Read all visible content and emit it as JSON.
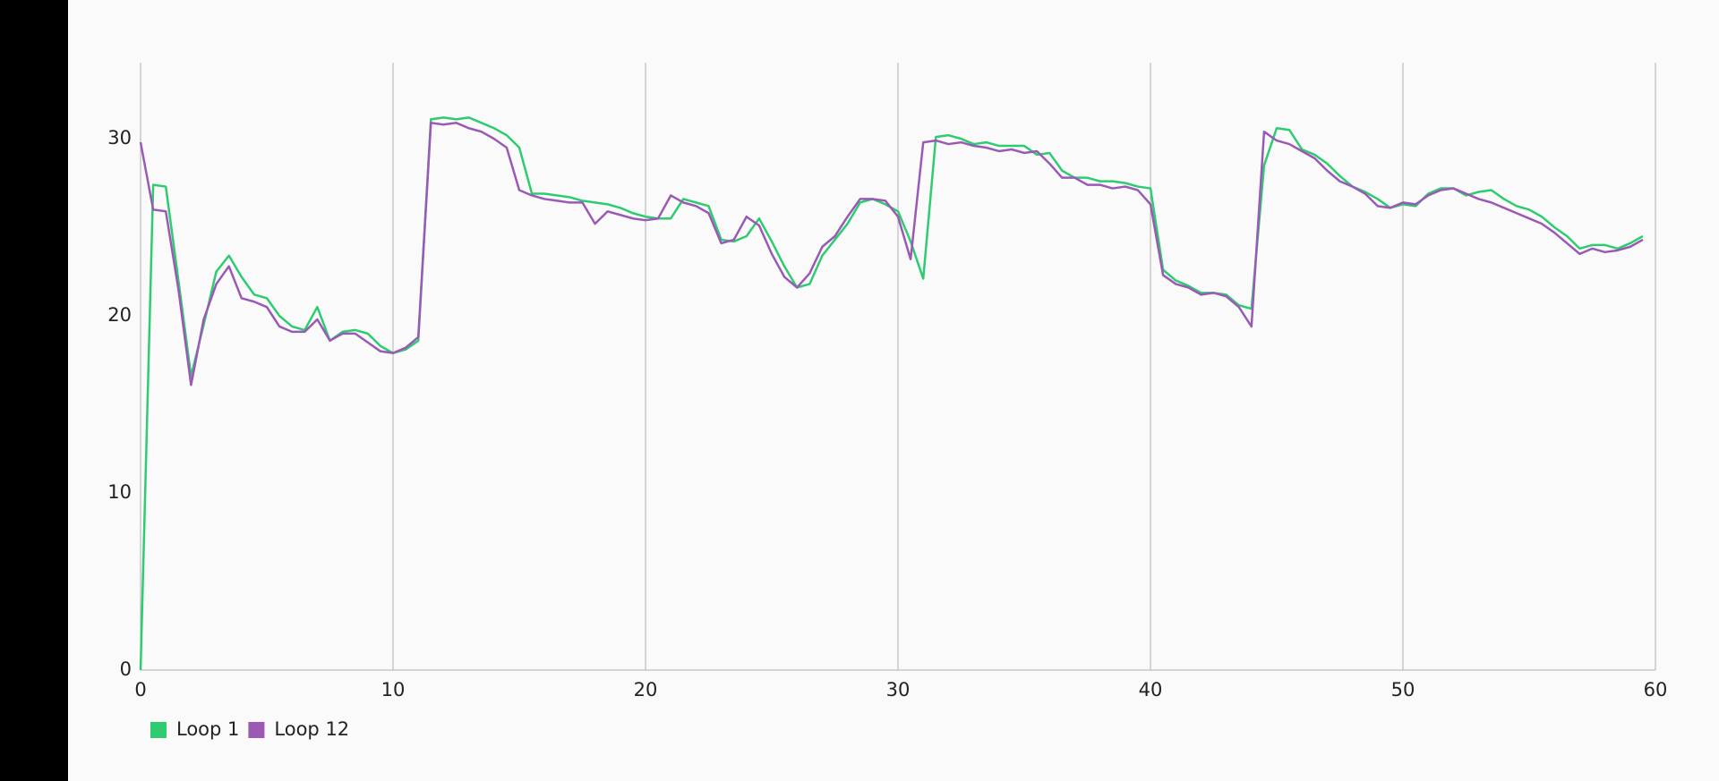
{
  "chart_data": {
    "type": "line",
    "x": [
      0,
      0.5,
      1,
      1.5,
      2,
      2.5,
      3,
      3.5,
      4,
      4.5,
      5,
      5.5,
      6,
      6.5,
      7,
      7.5,
      8,
      8.5,
      9,
      9.5,
      10,
      10.5,
      11,
      11.5,
      12,
      12.5,
      13,
      13.5,
      14,
      14.5,
      15,
      15.5,
      16,
      16.5,
      17,
      17.5,
      18,
      18.5,
      19,
      19.5,
      20,
      20.5,
      21,
      21.5,
      22,
      22.5,
      23,
      23.5,
      24,
      24.5,
      25,
      25.5,
      26,
      26.5,
      27,
      27.5,
      28,
      28.5,
      29,
      29.5,
      30,
      30.5,
      31,
      31.5,
      32,
      32.5,
      33,
      33.5,
      34,
      34.5,
      35,
      35.5,
      36,
      36.5,
      37,
      37.5,
      38,
      38.5,
      39,
      39.5,
      40,
      40.5,
      41,
      41.5,
      42,
      42.5,
      43,
      43.5,
      44,
      44.5,
      45,
      45.5,
      46,
      46.5,
      47,
      47.5,
      48,
      48.5,
      49,
      49.5,
      50,
      50.5,
      51,
      51.5,
      52,
      52.5,
      53,
      53.5,
      54,
      54.5,
      55,
      55.5,
      56,
      56.5,
      57,
      57.5,
      58,
      58.5,
      59,
      59.5
    ],
    "series": [
      {
        "name": "Loop 1",
        "color": "#2ecc71",
        "values": [
          0,
          27.4,
          27.3,
          22,
          16.6,
          19.5,
          22.5,
          23.4,
          22.2,
          21.2,
          21,
          20,
          19.4,
          19.2,
          20.5,
          18.6,
          19.1,
          19.2,
          19,
          18.3,
          17.9,
          18.1,
          18.6,
          31.1,
          31.2,
          31.1,
          31.2,
          30.9,
          30.6,
          30.2,
          29.5,
          26.9,
          26.9,
          26.8,
          26.7,
          26.5,
          26.4,
          26.3,
          26.1,
          25.8,
          25.6,
          25.5,
          25.5,
          26.6,
          26.4,
          26.2,
          24.3,
          24.2,
          24.5,
          25.5,
          24.2,
          22.8,
          21.6,
          21.8,
          23.4,
          24.3,
          25.2,
          26.4,
          26.6,
          26.3,
          25.9,
          24.2,
          22.1,
          30.1,
          30.2,
          30,
          29.7,
          29.8,
          29.6,
          29.6,
          29.6,
          29.1,
          29.2,
          28.2,
          27.8,
          27.8,
          27.6,
          27.6,
          27.5,
          27.3,
          27.2,
          22.6,
          22,
          21.7,
          21.3,
          21.3,
          21.2,
          20.6,
          20.4,
          28.5,
          30.6,
          30.5,
          29.4,
          29.1,
          28.6,
          27.9,
          27.3,
          27,
          26.6,
          26.1,
          26.3,
          26.2,
          26.9,
          27.2,
          27.2,
          26.8,
          27,
          27.1,
          26.6,
          26.2,
          26,
          25.6,
          25,
          24.5,
          23.8,
          24,
          24,
          23.8,
          24.1,
          24.5
        ]
      },
      {
        "name": "Loop 12",
        "color": "#9b59b6",
        "values": [
          29.8,
          26,
          25.9,
          21.5,
          16.1,
          19.8,
          21.8,
          22.8,
          21,
          20.8,
          20.5,
          19.4,
          19.1,
          19.1,
          19.8,
          18.6,
          19,
          19,
          18.5,
          18,
          17.9,
          18.2,
          18.8,
          30.9,
          30.8,
          30.9,
          30.6,
          30.4,
          30,
          29.5,
          27.1,
          26.8,
          26.6,
          26.5,
          26.4,
          26.4,
          25.2,
          25.9,
          25.7,
          25.5,
          25.4,
          25.5,
          26.8,
          26.4,
          26.2,
          25.8,
          24.1,
          24.3,
          25.6,
          25.1,
          23.5,
          22.2,
          21.6,
          22.4,
          23.9,
          24.5,
          25.6,
          26.6,
          26.6,
          26.5,
          25.6,
          23.2,
          29.8,
          29.9,
          29.7,
          29.8,
          29.6,
          29.5,
          29.3,
          29.4,
          29.2,
          29.3,
          28.6,
          27.8,
          27.8,
          27.4,
          27.4,
          27.2,
          27.3,
          27.1,
          26.3,
          22.3,
          21.8,
          21.6,
          21.2,
          21.3,
          21.1,
          20.5,
          19.4,
          30.4,
          29.9,
          29.7,
          29.3,
          28.9,
          28.2,
          27.6,
          27.3,
          26.9,
          26.2,
          26.1,
          26.4,
          26.3,
          26.8,
          27.1,
          27.2,
          26.9,
          26.6,
          26.4,
          26.1,
          25.8,
          25.5,
          25.2,
          24.7,
          24.1,
          23.5,
          23.8,
          23.6,
          23.7,
          23.9,
          24.3
        ]
      }
    ],
    "xlim": [
      0,
      60
    ],
    "xticks": [
      0,
      10,
      20,
      30,
      40,
      50,
      60
    ],
    "ylim": [
      0,
      34.3
    ],
    "yticks": [
      0,
      10,
      20,
      30
    ],
    "grid": "x",
    "legend": "bottom-left"
  }
}
